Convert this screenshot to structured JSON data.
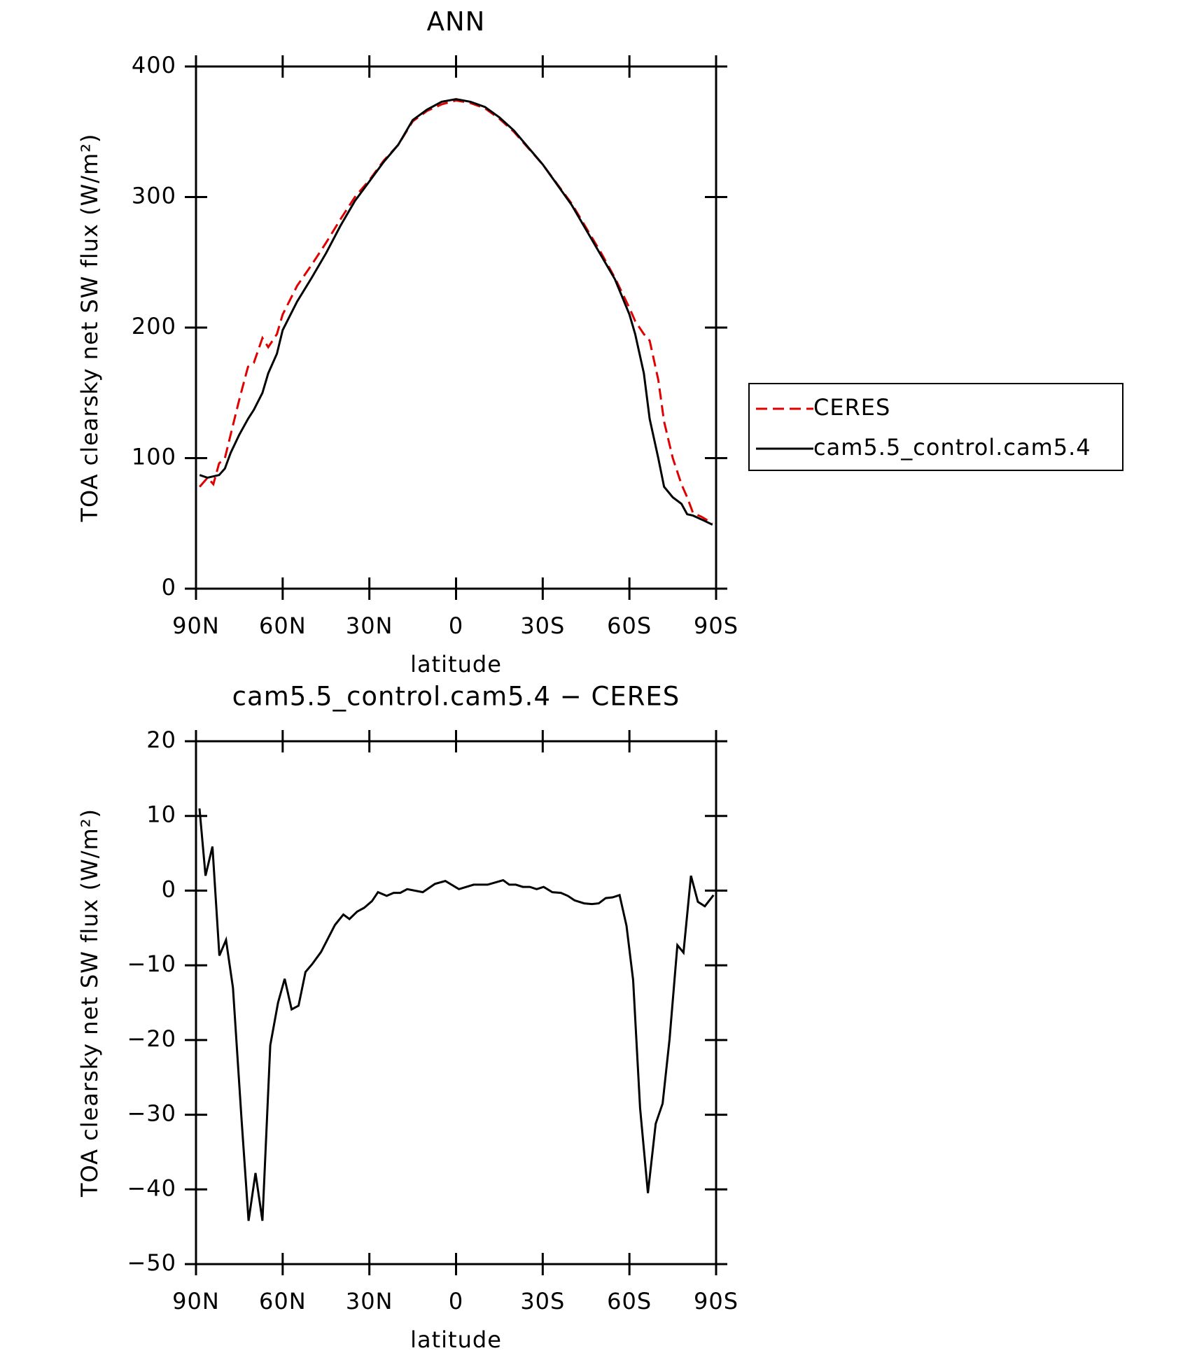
{
  "chart_data": [
    {
      "type": "line",
      "title": "ANN",
      "x_label": "latitude",
      "y_label": "TOA clearsky net SW flux (W/m²)",
      "x": [
        88.75,
        86,
        84,
        82,
        80,
        78,
        75,
        72,
        70,
        67,
        65,
        62,
        60,
        55,
        50,
        45,
        40,
        35,
        30,
        25,
        20,
        15,
        10,
        5,
        0,
        -5,
        -10,
        -15,
        -20,
        -30,
        -40,
        -50,
        -55,
        -60,
        -62,
        -65,
        -67,
        -70,
        -72,
        -75,
        -78,
        -80,
        -82,
        -85,
        -88.75
      ],
      "series": [
        {
          "name": "CERES",
          "color": "#e00000",
          "dash": true,
          "values": [
            78,
            85,
            80,
            96,
            100,
            118,
            145,
            170,
            173,
            192,
            185,
            195,
            210,
            232,
            248,
            265,
            283,
            300,
            313,
            328,
            340,
            358,
            366,
            371,
            374,
            372,
            368,
            360,
            350,
            325,
            295,
            258,
            238,
            215,
            205,
            195,
            190,
            160,
            128,
            100,
            80,
            70,
            58,
            55,
            50
          ]
        },
        {
          "name": "cam5.5_control.cam5.4",
          "color": "#000000",
          "dash": false,
          "values": [
            87,
            85,
            86,
            87,
            92,
            104,
            118,
            130,
            137,
            150,
            165,
            180,
            198,
            220,
            238,
            257,
            278,
            297,
            312,
            327,
            340,
            359,
            367,
            373,
            375,
            373,
            369,
            361,
            351,
            325,
            294,
            256,
            237,
            210,
            195,
            165,
            130,
            100,
            78,
            70,
            65,
            57,
            56,
            53,
            49
          ]
        }
      ],
      "xlim": [
        90,
        -90
      ],
      "xticks": [
        {
          "value": 90,
          "label": "90N"
        },
        {
          "value": 60,
          "label": "60N"
        },
        {
          "value": 30,
          "label": "30N"
        },
        0,
        {
          "value": -30,
          "label": "30S"
        },
        {
          "value": -60,
          "label": "60S"
        },
        {
          "value": -90,
          "label": "90S"
        }
      ],
      "ylim": [
        0,
        400
      ],
      "yticks": [
        0,
        100,
        200,
        300,
        400
      ],
      "legend": "outside-right"
    },
    {
      "type": "line",
      "title": "cam5.5_control.cam5.4 − CERES",
      "x_label": "latitude",
      "y_label": "TOA clearsky net SW flux (W/m²)",
      "x": [
        88.8,
        86.7,
        84.3,
        81.9,
        79.6,
        77.2,
        74.2,
        71.8,
        69.4,
        67.0,
        64.3,
        61.6,
        59.3,
        56.9,
        54.5,
        52.1,
        49.7,
        46.7,
        44.3,
        41.9,
        39.0,
        36.9,
        34.2,
        31.8,
        29.1,
        27.0,
        24.0,
        21.6,
        19.3,
        16.9,
        11.5,
        7.3,
        3.7,
        -1.0,
        -6.1,
        -10.9,
        -16.3,
        -18.4,
        -20.7,
        -23.1,
        -25.5,
        -27.9,
        -30.3,
        -33.3,
        -36.3,
        -38.7,
        -41.0,
        -44.3,
        -47.0,
        -49.4,
        -51.8,
        -54.2,
        -56.6,
        -59.0,
        -61.3,
        -63.7,
        -66.4,
        -69.1,
        -71.5,
        -73.9,
        -76.6,
        -78.7,
        -81.3,
        -83.7,
        -86.1,
        -89.1
      ],
      "series": [
        {
          "name": "cam5.5_control.cam5.4 − CERES",
          "color": "#000000",
          "dash": false,
          "values": [
            11,
            2,
            5.9,
            -8.7,
            -6.6,
            -13,
            -30.8,
            -44.2,
            -37.8,
            -44.2,
            -20.7,
            -15,
            -11.8,
            -15.9,
            -15.4,
            -10.9,
            -9.8,
            -8.2,
            -6.4,
            -4.6,
            -3.2,
            -3.8,
            -2.8,
            -2.3,
            -1.4,
            -0.2,
            -0.7,
            -0.3,
            -0.3,
            0.2,
            -0.2,
            0.9,
            1.3,
            0.2,
            0.8,
            0.8,
            1.4,
            0.8,
            0.8,
            0.5,
            0.5,
            0.2,
            0.5,
            -0.2,
            -0.3,
            -0.7,
            -1.3,
            -1.7,
            -1.8,
            -1.7,
            -1.0,
            -0.9,
            -0.6,
            -4.7,
            -12,
            -29.1,
            -40.5,
            -31.2,
            -28.5,
            -19.9,
            -7.3,
            -8.3,
            2,
            -1.5,
            -2.1,
            -0.6
          ]
        }
      ],
      "xlim": [
        90,
        -90
      ],
      "xticks": [
        {
          "value": 90,
          "label": "90N"
        },
        {
          "value": 60,
          "label": "60N"
        },
        {
          "value": 30,
          "label": "30N"
        },
        0,
        {
          "value": -30,
          "label": "30S"
        },
        {
          "value": -60,
          "label": "60S"
        },
        {
          "value": -90,
          "label": "90S"
        }
      ],
      "ylim": [
        -50,
        20
      ],
      "yticks": [
        {
          "value": -50,
          "label": "−50"
        },
        {
          "value": -40,
          "label": "−40"
        },
        {
          "value": -30,
          "label": "−30"
        },
        {
          "value": -20,
          "label": "−20"
        },
        {
          "value": -10,
          "label": "−10"
        },
        0,
        10,
        20
      ]
    }
  ]
}
